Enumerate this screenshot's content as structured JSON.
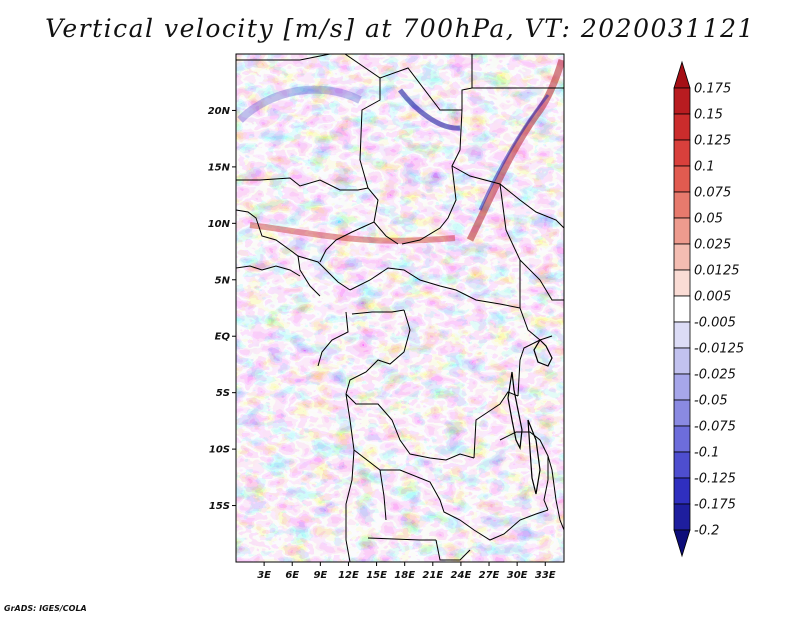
{
  "title": "Vertical velocity [m/s] at 700hPa, VT: 2020031121",
  "credit": "GrADS: IGES/COLA",
  "map": {
    "lon_range": [
      0,
      35
    ],
    "lat_range": [
      -20,
      25
    ],
    "lat_ticks": [
      {
        "lat": 20,
        "label": "20N"
      },
      {
        "lat": 15,
        "label": "15N"
      },
      {
        "lat": 10,
        "label": "10N"
      },
      {
        "lat": 5,
        "label": "5N"
      },
      {
        "lat": 0,
        "label": "EQ"
      },
      {
        "lat": -5,
        "label": "5S"
      },
      {
        "lat": -10,
        "label": "10S"
      },
      {
        "lat": -15,
        "label": "15S"
      }
    ],
    "lon_ticks": [
      {
        "lon": 3,
        "label": "3E"
      },
      {
        "lon": 6,
        "label": "6E"
      },
      {
        "lon": 9,
        "label": "9E"
      },
      {
        "lon": 12,
        "label": "12E"
      },
      {
        "lon": 15,
        "label": "15E"
      },
      {
        "lon": 18,
        "label": "18E"
      },
      {
        "lon": 21,
        "label": "21E"
      },
      {
        "lon": 24,
        "label": "24E"
      },
      {
        "lon": 27,
        "label": "27E"
      },
      {
        "lon": 30,
        "label": "30E"
      },
      {
        "lon": 33,
        "label": "33E"
      }
    ]
  },
  "colorbar": {
    "boundaries": [
      "0.175",
      "0.15",
      "0.125",
      "0.1",
      "0.075",
      "0.05",
      "0.025",
      "0.0125",
      "0.005",
      "-0.005",
      "-0.0125",
      "-0.025",
      "-0.05",
      "-0.075",
      "-0.1",
      "-0.125",
      "-0.175",
      "-0.2"
    ],
    "colors": [
      "#a50f15",
      "#b81c20",
      "#cb2c2c",
      "#d9403c",
      "#e15b50",
      "#e77a6d",
      "#ee9b8e",
      "#f4bdb2",
      "#fadcd5",
      "#ffffff",
      "#dcdcf6",
      "#c2c2ef",
      "#a6a6ea",
      "#8a8ae2",
      "#6d6ddb",
      "#4e4ecf",
      "#2f2fbf",
      "#1e1e9e",
      "#0d0d7a"
    ]
  }
}
